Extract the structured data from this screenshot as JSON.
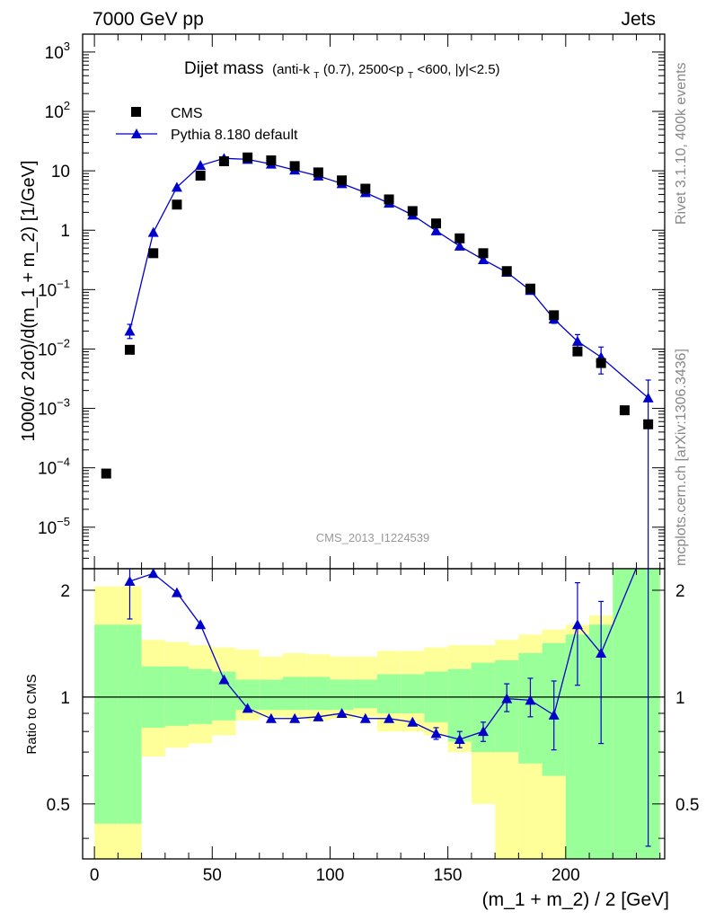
{
  "header": {
    "left": "7000 GeV pp",
    "right": "Jets"
  },
  "side_text": {
    "top": "Rivet 3.1.10,  400k events",
    "bottom": "mcplots.cern.ch [arXiv:1306.3436]"
  },
  "chart_data": {
    "type": "scatter",
    "title": {
      "main": "Dijet mass",
      "cut_parts": [
        "(anti-k",
        "T",
        "(0.7), 2500<p",
        "T",
        "<600, |y|<2.5)"
      ]
    },
    "watermark": "CMS_2013_I1224539",
    "xlabel": "(m_1 + m_2) / 2 [GeV]",
    "ylabel": "1000/σ 2dσ)/d(m_1 + m_2) [1/GeV]",
    "ratio_ylabel": "Ratio to CMS",
    "xlim": [
      -5,
      242
    ],
    "ylim": [
      2e-06,
      2000
    ],
    "yscale": "log",
    "ratio_ylim": [
      0.35,
      2.3
    ],
    "ratio_yscale": "log",
    "x_ticks": [
      "0",
      "50",
      "100",
      "150",
      "200"
    ],
    "y_ticks": [
      {
        "b": "10",
        "e": "3"
      },
      {
        "b": "10",
        "e": "2"
      },
      {
        "b": "10",
        "e": ""
      },
      {
        "b": "1",
        "e": ""
      },
      {
        "b": "10",
        "e": "−1"
      },
      {
        "b": "10",
        "e": "−2"
      },
      {
        "b": "10",
        "e": "−3"
      },
      {
        "b": "10",
        "e": "−4"
      },
      {
        "b": "10",
        "e": "−5"
      }
    ],
    "ratio_y_ticks": [
      "2",
      "1",
      "0.5"
    ],
    "legend_position": "top-left",
    "series": [
      {
        "name": "CMS",
        "marker": "square",
        "color": "#000000",
        "x": [
          5,
          15,
          25,
          35,
          45,
          55,
          65,
          75,
          85,
          95,
          105,
          115,
          125,
          135,
          145,
          155,
          165,
          175,
          185,
          195,
          205,
          215,
          225,
          235
        ],
        "y": [
          8e-05,
          0.0097,
          0.41,
          2.7,
          8.3,
          14.5,
          16.8,
          15.0,
          12.0,
          9.4,
          6.9,
          5.0,
          3.3,
          2.1,
          1.3,
          0.73,
          0.41,
          0.205,
          0.104,
          0.037,
          0.0091,
          0.0058,
          0.00093,
          0.00054
        ]
      },
      {
        "name": "Pythia 8.180 default",
        "marker": "triangle",
        "color": "#0000cc",
        "x": [
          15,
          25,
          35,
          45,
          55,
          65,
          75,
          85,
          95,
          105,
          115,
          125,
          135,
          145,
          155,
          165,
          175,
          185,
          195,
          205,
          215,
          235
        ],
        "y": [
          0.02,
          0.92,
          5.3,
          12.3,
          16.2,
          15.6,
          13.0,
          10.3,
          8.2,
          6.1,
          4.3,
          2.85,
          1.8,
          0.98,
          0.54,
          0.32,
          0.196,
          0.097,
          0.032,
          0.0135,
          0.0073,
          0.0015
        ],
        "yerr_lo": [
          0.005,
          0,
          0,
          0,
          0,
          0,
          0,
          0,
          0,
          0,
          0,
          0,
          0,
          0,
          0,
          0,
          0,
          0,
          0.005,
          0.004,
          0.0035,
          0.0015
        ],
        "yerr_hi": [
          0.006,
          0,
          0,
          0,
          0,
          0,
          0,
          0,
          0,
          0,
          0,
          0,
          0,
          0,
          0,
          0,
          0,
          0,
          0.005,
          0.004,
          0.0035,
          0.0015
        ]
      }
    ],
    "ratio": {
      "x": [
        15,
        25,
        35,
        45,
        55,
        65,
        75,
        85,
        95,
        105,
        115,
        125,
        135,
        145,
        155,
        165,
        175,
        185,
        195,
        205,
        215,
        235
      ],
      "y": [
        2.12,
        2.23,
        1.97,
        1.6,
        1.12,
        0.93,
        0.87,
        0.87,
        0.88,
        0.9,
        0.87,
        0.87,
        0.85,
        0.79,
        0.76,
        0.8,
        0.99,
        0.98,
        0.89,
        1.6,
        1.33,
        2.78
      ],
      "yerr_lo": [
        0.46,
        0,
        0,
        0,
        0,
        0,
        0,
        0,
        0,
        0,
        0,
        0,
        0,
        0.03,
        0.04,
        0.05,
        0.08,
        0.1,
        0.18,
        0.52,
        0.59,
        2.4
      ],
      "yerr_hi": [
        0.6,
        0,
        0,
        0,
        0,
        0,
        0,
        0,
        0,
        0,
        0,
        0,
        0,
        0.03,
        0.04,
        0.05,
        0.1,
        0.15,
        0.22,
        0.5,
        0.53,
        2.0
      ],
      "bands": {
        "edges": [
          0,
          10,
          20,
          30,
          40,
          50,
          60,
          70,
          80,
          90,
          100,
          110,
          120,
          130,
          140,
          150,
          160,
          170,
          180,
          190,
          200,
          210,
          220,
          230,
          240
        ],
        "yellow_lo": [
          0.3,
          0.3,
          0.68,
          0.72,
          0.74,
          0.78,
          0.86,
          0.88,
          0.87,
          0.86,
          0.87,
          0.88,
          0.8,
          0.8,
          0.78,
          0.7,
          0.5,
          0.3,
          0.3,
          0.3,
          0.3,
          0.3,
          0.3,
          0.3
        ],
        "yellow_hi": [
          2.05,
          2.05,
          1.45,
          1.43,
          1.4,
          1.38,
          1.36,
          1.3,
          1.33,
          1.32,
          1.3,
          1.3,
          1.35,
          1.35,
          1.38,
          1.4,
          1.4,
          1.45,
          1.5,
          1.55,
          1.6,
          1.7,
          3.0,
          3.0
        ],
        "green_lo": [
          0.44,
          0.44,
          0.82,
          0.83,
          0.84,
          0.86,
          0.92,
          0.92,
          0.92,
          0.92,
          0.92,
          0.93,
          0.9,
          0.9,
          0.85,
          0.75,
          0.7,
          0.7,
          0.65,
          0.6,
          0.3,
          0.3,
          0.3,
          0.3
        ],
        "green_hi": [
          1.6,
          1.6,
          1.22,
          1.22,
          1.2,
          1.18,
          1.12,
          1.12,
          1.14,
          1.14,
          1.12,
          1.12,
          1.16,
          1.16,
          1.18,
          1.2,
          1.25,
          1.27,
          1.33,
          1.42,
          1.5,
          1.6,
          2.3,
          2.3
        ],
        "yellow_color": "#ffff99",
        "green_color": "#99ff99"
      }
    }
  }
}
